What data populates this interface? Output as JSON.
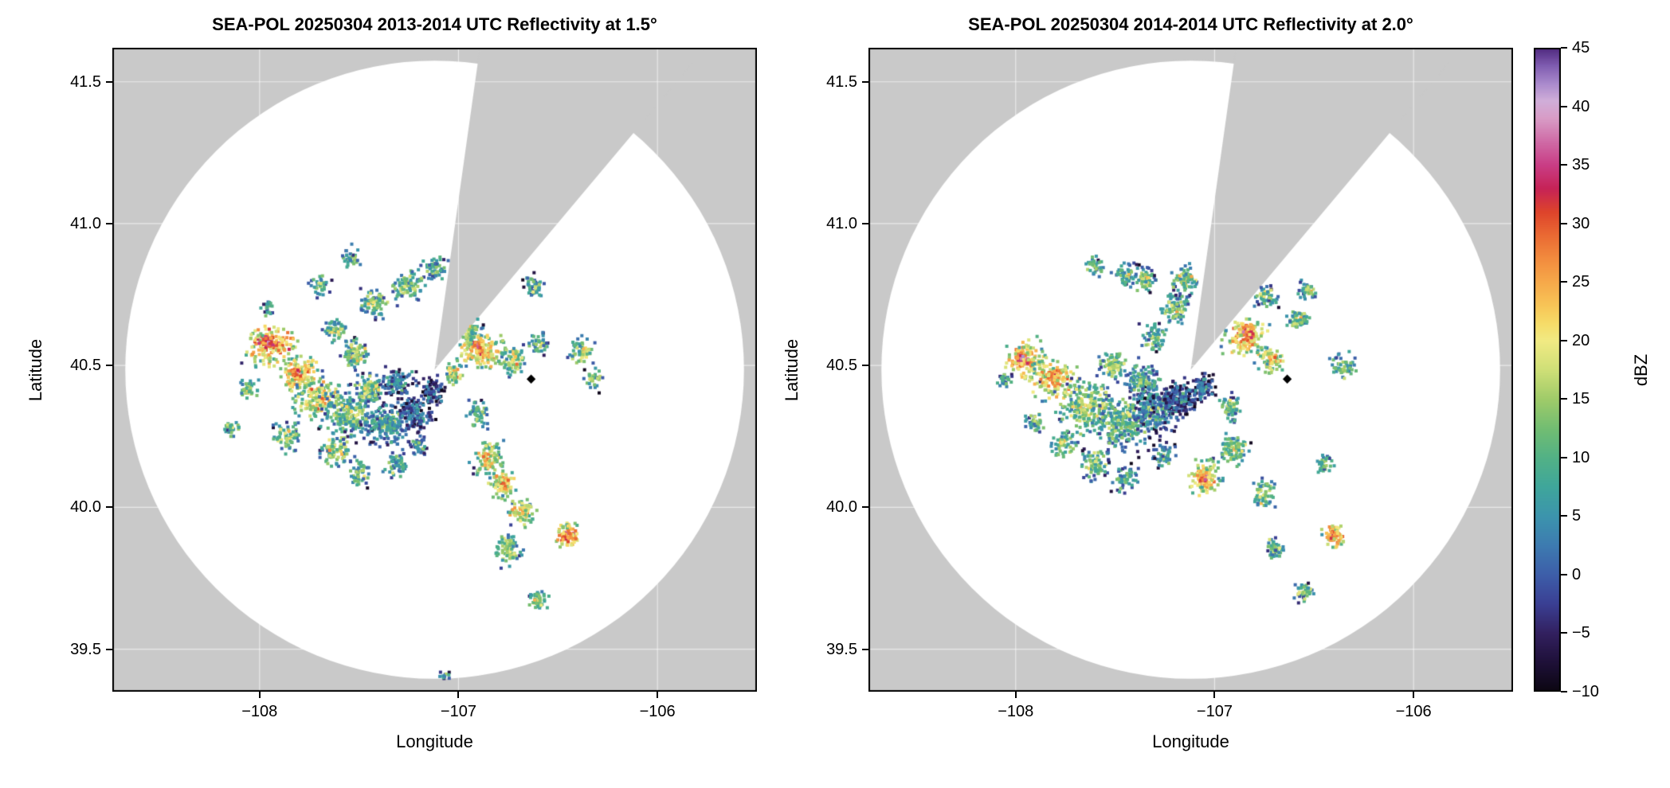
{
  "figure": {
    "kind": "radar-ppi-reflectivity-figure",
    "background": "#ffffff"
  },
  "chart_data": {
    "type": "heatmap",
    "figure_colors": {
      "background": "#ffffff",
      "outside_range": "#c9c9c9",
      "frame": "#000000",
      "grid": "#ffffff",
      "text": "#000000",
      "marker": "#000000"
    },
    "colorbar": {
      "label": "dBZ",
      "min": -10,
      "max": 45,
      "ticks": [
        45,
        40,
        35,
        30,
        25,
        20,
        15,
        10,
        5,
        0,
        -5,
        -10
      ],
      "tick_labels": [
        "45",
        "40",
        "35",
        "30",
        "25",
        "20",
        "15",
        "10",
        "5",
        "0",
        "−5",
        "−10"
      ]
    },
    "colormap_stops": [
      [
        -10,
        "#0b0611"
      ],
      [
        -7.5,
        "#1e1038"
      ],
      [
        -5,
        "#32205f"
      ],
      [
        -2.5,
        "#3a3f93"
      ],
      [
        0,
        "#3d5ea9"
      ],
      [
        2.5,
        "#3d7bb0"
      ],
      [
        5,
        "#3c94ad"
      ],
      [
        7.5,
        "#3fa69b"
      ],
      [
        10,
        "#52b186"
      ],
      [
        12.5,
        "#72bd72"
      ],
      [
        15,
        "#9fcb69"
      ],
      [
        17.5,
        "#cfdf77"
      ],
      [
        20,
        "#f1ea83"
      ],
      [
        21.5,
        "#f6dc68"
      ],
      [
        23,
        "#f7c557"
      ],
      [
        25,
        "#f6a94a"
      ],
      [
        27,
        "#f28c3e"
      ],
      [
        29,
        "#ea6a33"
      ],
      [
        31,
        "#de442b"
      ],
      [
        33,
        "#c62357"
      ],
      [
        35,
        "#c93d85"
      ],
      [
        37,
        "#cf6ba6"
      ],
      [
        39,
        "#d89cc6"
      ],
      [
        40.5,
        "#d0aed9"
      ],
      [
        42,
        "#a989cc"
      ],
      [
        43.5,
        "#7f5cb0"
      ],
      [
        45,
        "#502a80"
      ]
    ],
    "panels": [
      {
        "title": "SEA-POL 20250304 2013-2014 UTC Reflectivity at 1.5°",
        "xlabel": "Longitude",
        "ylabel": "Latitude",
        "xlim": [
          -108.74,
          -105.5
        ],
        "ylim": [
          39.35,
          41.62
        ],
        "xticks": [
          {
            "v": -108,
            "label": "−108"
          },
          {
            "v": -107,
            "label": "−107"
          },
          {
            "v": -106,
            "label": "−106"
          }
        ],
        "yticks": [
          {
            "v": 39.5,
            "label": "39.5"
          },
          {
            "v": 40.0,
            "label": "40.0"
          },
          {
            "v": 40.5,
            "label": "40.5"
          },
          {
            "v": 41.0,
            "label": "41.0"
          },
          {
            "v": 41.5,
            "label": "41.5"
          }
        ],
        "radar": {
          "center": [
            -107.12,
            40.485
          ],
          "range_lon_deg": 1.555,
          "blocked_azimuth_deg": [
            8,
            40
          ]
        },
        "site_marker": [
          -106.635,
          40.452
        ],
        "seed": 97,
        "echo_clusters": [
          [
            -107.94,
            40.57,
            0.1,
            0.055,
            26,
            200
          ],
          [
            -107.96,
            40.585,
            0.03,
            0.02,
            33,
            60
          ],
          [
            -107.8,
            40.47,
            0.075,
            0.05,
            24,
            150
          ],
          [
            -107.81,
            40.475,
            0.022,
            0.016,
            32,
            40
          ],
          [
            -107.7,
            40.38,
            0.1,
            0.06,
            19,
            190
          ],
          [
            -107.55,
            40.33,
            0.12,
            0.07,
            12,
            240
          ],
          [
            -107.36,
            40.29,
            0.1,
            0.06,
            8,
            220
          ],
          [
            -107.22,
            40.33,
            0.08,
            0.055,
            2,
            190
          ],
          [
            -107.13,
            40.41,
            0.05,
            0.045,
            0,
            120
          ],
          [
            -107.3,
            40.44,
            0.075,
            0.04,
            6,
            130
          ],
          [
            -107.45,
            40.42,
            0.06,
            0.04,
            14,
            110
          ],
          [
            -107.52,
            40.54,
            0.055,
            0.04,
            16,
            90
          ],
          [
            -107.62,
            40.62,
            0.05,
            0.035,
            13,
            70
          ],
          [
            -107.42,
            40.72,
            0.06,
            0.045,
            13,
            85
          ],
          [
            -107.25,
            40.78,
            0.065,
            0.05,
            14,
            100
          ],
          [
            -107.12,
            40.84,
            0.05,
            0.035,
            12,
            65
          ],
          [
            -106.62,
            40.78,
            0.04,
            0.035,
            10,
            55
          ],
          [
            -106.94,
            40.62,
            0.05,
            0.04,
            15,
            75
          ],
          [
            -106.88,
            40.55,
            0.09,
            0.05,
            23,
            170
          ],
          [
            -106.9,
            40.57,
            0.028,
            0.02,
            30,
            45
          ],
          [
            -106.73,
            40.52,
            0.05,
            0.04,
            18,
            85
          ],
          [
            -106.6,
            40.58,
            0.04,
            0.03,
            14,
            45
          ],
          [
            -106.38,
            40.55,
            0.05,
            0.038,
            16,
            65
          ],
          [
            -106.32,
            40.45,
            0.04,
            0.03,
            13,
            40
          ],
          [
            -106.9,
            40.33,
            0.05,
            0.04,
            12,
            65
          ],
          [
            -106.85,
            40.17,
            0.06,
            0.05,
            19,
            110
          ],
          [
            -106.78,
            40.08,
            0.05,
            0.04,
            22,
            95
          ],
          [
            -106.68,
            39.98,
            0.05,
            0.04,
            20,
            85
          ],
          [
            -106.45,
            39.9,
            0.042,
            0.034,
            28,
            90
          ],
          [
            -106.75,
            39.85,
            0.05,
            0.04,
            16,
            85
          ],
          [
            -106.6,
            39.67,
            0.04,
            0.03,
            14,
            55
          ],
          [
            -108.05,
            40.42,
            0.04,
            0.03,
            14,
            45
          ],
          [
            -108.14,
            40.28,
            0.032,
            0.026,
            12,
            32
          ],
          [
            -107.95,
            40.7,
            0.03,
            0.024,
            10,
            28
          ],
          [
            -107.7,
            40.78,
            0.04,
            0.03,
            11,
            40
          ],
          [
            -107.55,
            40.88,
            0.042,
            0.03,
            12,
            42
          ],
          [
            -107.86,
            40.25,
            0.05,
            0.04,
            15,
            75
          ],
          [
            -107.62,
            40.2,
            0.06,
            0.042,
            16,
            95
          ],
          [
            -107.5,
            40.12,
            0.05,
            0.04,
            13,
            65
          ],
          [
            -107.31,
            40.15,
            0.05,
            0.038,
            10,
            65
          ],
          [
            -107.2,
            40.22,
            0.04,
            0.03,
            6,
            45
          ],
          [
            -107.02,
            40.47,
            0.032,
            0.028,
            20,
            50
          ],
          [
            -107.06,
            39.4,
            0.03,
            0.018,
            9,
            22
          ]
        ]
      },
      {
        "title": "SEA-POL 20250304 2014-2014 UTC Reflectivity at 2.0°",
        "xlabel": "Longitude",
        "ylabel": "Latitude",
        "xlim": [
          -108.74,
          -105.5
        ],
        "ylim": [
          39.35,
          41.62
        ],
        "xticks": [
          {
            "v": -108,
            "label": "−108"
          },
          {
            "v": -107,
            "label": "−107"
          },
          {
            "v": -106,
            "label": "−106"
          }
        ],
        "yticks": [
          {
            "v": 39.5,
            "label": "39.5"
          },
          {
            "v": 40.0,
            "label": "40.0"
          },
          {
            "v": 40.5,
            "label": "40.5"
          },
          {
            "v": 41.0,
            "label": "41.0"
          },
          {
            "v": 41.5,
            "label": "41.5"
          }
        ],
        "radar": {
          "center": [
            -107.12,
            40.485
          ],
          "range_lon_deg": 1.555,
          "blocked_azimuth_deg": [
            8,
            40
          ]
        },
        "site_marker": [
          -106.635,
          40.452
        ],
        "seed": 42,
        "echo_clusters": [
          [
            -107.95,
            40.52,
            0.08,
            0.05,
            25,
            150
          ],
          [
            -107.97,
            40.53,
            0.024,
            0.018,
            31,
            40
          ],
          [
            -107.8,
            40.45,
            0.09,
            0.055,
            23,
            170
          ],
          [
            -107.82,
            40.46,
            0.024,
            0.018,
            30,
            40
          ],
          [
            -107.64,
            40.35,
            0.12,
            0.075,
            16,
            260
          ],
          [
            -107.46,
            40.3,
            0.12,
            0.075,
            12,
            280
          ],
          [
            -107.3,
            40.34,
            0.1,
            0.065,
            6,
            240
          ],
          [
            -107.18,
            40.38,
            0.08,
            0.055,
            1,
            210
          ],
          [
            -107.06,
            40.42,
            0.05,
            0.04,
            3,
            110
          ],
          [
            -107.36,
            40.45,
            0.08,
            0.05,
            10,
            150
          ],
          [
            -107.5,
            40.5,
            0.06,
            0.04,
            15,
            95
          ],
          [
            -107.3,
            40.6,
            0.05,
            0.04,
            12,
            75
          ],
          [
            -107.2,
            40.7,
            0.06,
            0.045,
            13,
            95
          ],
          [
            -107.15,
            40.8,
            0.055,
            0.04,
            14,
            85
          ],
          [
            -106.74,
            40.74,
            0.05,
            0.035,
            12,
            65
          ],
          [
            -107.35,
            40.8,
            0.05,
            0.035,
            12,
            65
          ],
          [
            -106.85,
            40.6,
            0.08,
            0.05,
            24,
            160
          ],
          [
            -106.83,
            40.62,
            0.028,
            0.02,
            31,
            50
          ],
          [
            -106.72,
            40.52,
            0.055,
            0.04,
            20,
            100
          ],
          [
            -106.58,
            40.66,
            0.045,
            0.035,
            15,
            60
          ],
          [
            -106.53,
            40.76,
            0.038,
            0.028,
            13,
            42
          ],
          [
            -106.35,
            40.5,
            0.05,
            0.038,
            14,
            60
          ],
          [
            -106.92,
            40.35,
            0.05,
            0.04,
            13,
            70
          ],
          [
            -106.9,
            40.2,
            0.055,
            0.045,
            16,
            100
          ],
          [
            -107.05,
            40.1,
            0.06,
            0.05,
            23,
            130
          ],
          [
            -107.05,
            40.1,
            0.024,
            0.02,
            30,
            40
          ],
          [
            -106.75,
            40.05,
            0.05,
            0.04,
            15,
            75
          ],
          [
            -106.4,
            39.9,
            0.042,
            0.034,
            27,
            85
          ],
          [
            -106.7,
            39.85,
            0.04,
            0.034,
            14,
            55
          ],
          [
            -106.55,
            39.7,
            0.038,
            0.028,
            13,
            45
          ],
          [
            -107.6,
            40.15,
            0.06,
            0.045,
            14,
            90
          ],
          [
            -107.76,
            40.22,
            0.05,
            0.038,
            16,
            75
          ],
          [
            -107.9,
            40.3,
            0.04,
            0.03,
            13,
            45
          ],
          [
            -107.45,
            40.1,
            0.05,
            0.038,
            11,
            65
          ],
          [
            -107.25,
            40.18,
            0.05,
            0.038,
            8,
            60
          ],
          [
            -107.6,
            40.85,
            0.04,
            0.028,
            11,
            40
          ],
          [
            -107.45,
            40.82,
            0.05,
            0.033,
            13,
            55
          ],
          [
            -106.45,
            40.15,
            0.04,
            0.03,
            12,
            38
          ],
          [
            -108.05,
            40.45,
            0.03,
            0.024,
            12,
            32
          ]
        ]
      }
    ]
  }
}
